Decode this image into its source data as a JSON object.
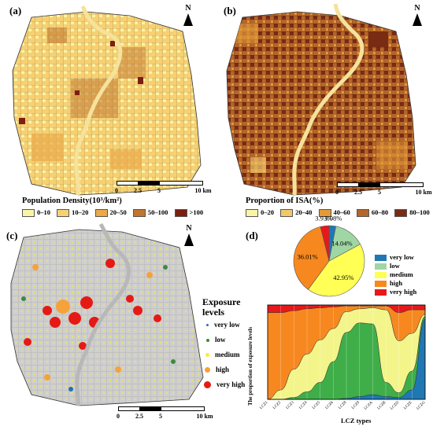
{
  "panels": {
    "a": {
      "label": "(a)",
      "legend_title": "Population Density(10³/km²)",
      "legend": [
        {
          "label": "0–10",
          "color": "#fbf4a6"
        },
        {
          "label": "10–20",
          "color": "#f6d073"
        },
        {
          "label": "20–50",
          "color": "#eaa94a"
        },
        {
          "label": "50–100",
          "color": "#c0762f"
        },
        {
          "label": ">100",
          "color": "#7b1f11"
        }
      ],
      "scale": [
        "0",
        "2.5",
        "5",
        "10 km"
      ],
      "north": "N"
    },
    "b": {
      "label": "(b)",
      "legend_title": "Proportion of ISA(%)",
      "legend": [
        {
          "label": "0–20",
          "color": "#fbf4a6"
        },
        {
          "label": "20–40",
          "color": "#f2c86a"
        },
        {
          "label": "40–60",
          "color": "#e39a39"
        },
        {
          "label": "60–80",
          "color": "#b4652a"
        },
        {
          "label": "80–100",
          "color": "#7a2b14"
        }
      ],
      "scale": [
        "0",
        "2.5",
        "5",
        "10 km"
      ],
      "north": "N"
    },
    "c": {
      "label": "(c)",
      "legend_title": "Exposure levels",
      "legend": [
        {
          "label": "very low",
          "color": "#2271b5"
        },
        {
          "label": "low",
          "color": "#3d8a3d"
        },
        {
          "label": "medium",
          "color": "#f4ef3a"
        },
        {
          "label": "high",
          "color": "#f5a23a"
        },
        {
          "label": "very high",
          "color": "#e51a14"
        }
      ],
      "scale": [
        "0",
        "2.5",
        "5",
        "10 km"
      ],
      "north": "N"
    },
    "d": {
      "label": "(d)",
      "xlabel": "LCZ types",
      "ylabel": "The proportion of exposure levels"
    }
  },
  "chart_data": [
    {
      "type": "pie",
      "labels": [
        "very low",
        "low",
        "medium",
        "high",
        "very high"
      ],
      "values": [
        3.08,
        14.04,
        42.95,
        36.01,
        3.93
      ],
      "value_labels": [
        "3.08%",
        "14.04%",
        "42.95%",
        "36.01%",
        "3.93%"
      ],
      "colors": [
        "#1f78b4",
        "#9fd6a4",
        "#ffff55",
        "#f7881f",
        "#e8171a"
      ],
      "legend_position": "right"
    },
    {
      "type": "area",
      "x": [
        "LCZ1",
        "LCZ2",
        "LCZ3",
        "LCZ4",
        "LCZ5",
        "LCZ6",
        "LCZ8",
        "LCZ9",
        "LCZA",
        "LCZB",
        "LCZD",
        "LCZE",
        "LCZG"
      ],
      "series": [
        {
          "name": "very low",
          "values": [
            0,
            0,
            0,
            0,
            0,
            0,
            1,
            3,
            5,
            3,
            2,
            10,
            85
          ]
        },
        {
          "name": "low",
          "values": [
            0,
            0,
            2,
            8,
            18,
            40,
            70,
            78,
            75,
            15,
            5,
            20,
            3
          ]
        },
        {
          "name": "medium",
          "values": [
            0,
            10,
            30,
            40,
            45,
            35,
            22,
            15,
            17,
            77,
            55,
            40,
            2
          ]
        },
        {
          "name": "high",
          "values": [
            92,
            82,
            62,
            48,
            34,
            23,
            6,
            3,
            2,
            4,
            30,
            25,
            5
          ]
        },
        {
          "name": "very high",
          "values": [
            8,
            8,
            6,
            4,
            3,
            2,
            1,
            1,
            1,
            1,
            8,
            5,
            5
          ]
        }
      ],
      "colors": [
        "#1f78b4",
        "#3fae49",
        "#f3f58a",
        "#f7881f",
        "#e8171a"
      ],
      "xlabel": "LCZ types",
      "ylabel": "The proportion of exposure levels",
      "ylim": [
        0,
        100
      ],
      "grid": false
    }
  ]
}
